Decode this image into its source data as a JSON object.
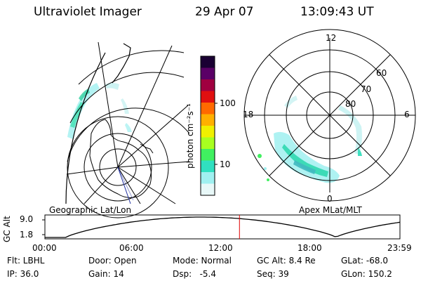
{
  "header": {
    "instrument": "Ultraviolet Imager",
    "date": "29 Apr 07",
    "time": "13:09:43 UT"
  },
  "colorbar": {
    "unit_label": "photon cm⁻²s⁻¹",
    "tick_100": "100",
    "tick_10": "10",
    "colors": [
      "#1a0033",
      "#5a0066",
      "#a00040",
      "#e01010",
      "#ff6a00",
      "#ffb000",
      "#f0f000",
      "#a8ff20",
      "#40f060",
      "#30e0c0",
      "#a0f0f0",
      "#e8f8f8"
    ]
  },
  "left_map": {
    "label": "Geographic Lat/Lon"
  },
  "right_map": {
    "label": "Apex MLat/MLT",
    "mlt_12": "12",
    "mlt_18": "18",
    "mlt_6": "6",
    "mlt_0": "0",
    "lat_60": "60",
    "lat_70": "70",
    "lat_80": "80"
  },
  "altitude_plot": {
    "ylabel": "GC Alt",
    "ytick_top": "9.0",
    "ytick_bottom": "1.8",
    "x_ticks": [
      "00:00",
      "06:00",
      "12:00",
      "18:00",
      "23:59"
    ],
    "current_time_fraction": 0.548,
    "marker_color": "#e00000"
  },
  "info": {
    "flt": "Flt: LBHL",
    "ip": "IP: 36.0",
    "door": "Door: Open",
    "gain": "Gain: 14",
    "mode": "Mode: Normal",
    "dsp": "Dsp:   -5.4",
    "gc_alt": "GC Alt: 8.4 Re",
    "seq": "Seq: 39",
    "glat": "GLat: -68.0",
    "glon": "GLon: 150.2"
  }
}
